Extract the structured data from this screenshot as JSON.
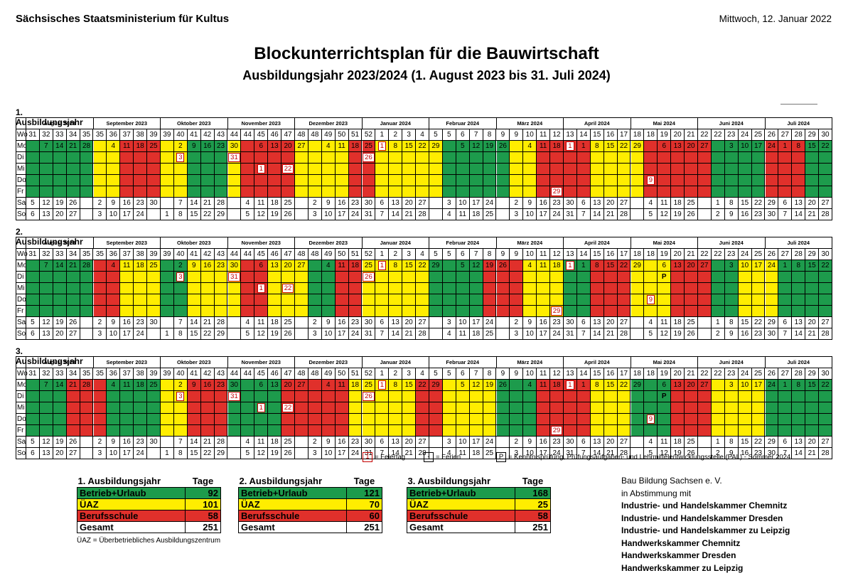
{
  "header": {
    "ministry": "Sächsisches Staatsministerium für Kultus",
    "date": "Mittwoch, 12. Januar 2022",
    "title": "Blockunterrichtsplan für die Bauwirtschaft",
    "subtitle": "Ausbildungsjahr 2023/2024 (1. August 2023 bis 31. Juli 2024)"
  },
  "day_labels": [
    "Wo",
    "Mo",
    "Di",
    "Mi",
    "Do",
    "Fr",
    "Sa",
    "So"
  ],
  "months": [
    {
      "label": "August 2023",
      "span": 5
    },
    {
      "label": "September 2023",
      "span": 5
    },
    {
      "label": "Oktober 2023",
      "span": 5
    },
    {
      "label": "November 2023",
      "span": 5
    },
    {
      "label": "Dezember 2023",
      "span": 5
    },
    {
      "label": "Januar 2024",
      "span": 5
    },
    {
      "label": "Februar 2024",
      "span": 5
    },
    {
      "label": "März 2024",
      "span": 5
    },
    {
      "label": "April 2024",
      "span": 5
    },
    {
      "label": "Mai 2024",
      "span": 5
    },
    {
      "label": "Juni 2024",
      "span": 5
    },
    {
      "label": "Juli 2024",
      "span": 5
    }
  ],
  "week_numbers": [
    "31",
    "32",
    "33",
    "34",
    "35",
    "35",
    "36",
    "37",
    "38",
    "39",
    "39",
    "40",
    "41",
    "42",
    "43",
    "44",
    "44",
    "45",
    "46",
    "47",
    "48",
    "48",
    "49",
    "50",
    "51",
    "52",
    "1",
    "2",
    "3",
    "4",
    "5",
    "5",
    "6",
    "7",
    "8",
    "9",
    "9",
    "10",
    "11",
    "12",
    "13",
    "14",
    "15",
    "16",
    "17",
    "18",
    "18",
    "19",
    "20",
    "21",
    "22",
    "22",
    "23",
    "24",
    "25",
    "26",
    "27",
    "28",
    "29",
    "30",
    "31"
  ],
  "monday_dates": [
    "",
    "7",
    "14",
    "21",
    "28",
    "",
    "4",
    "11",
    "18",
    "25",
    "",
    "2",
    "9",
    "16",
    "23",
    "30",
    "",
    "6",
    "13",
    "20",
    "27",
    "",
    "4",
    "11",
    "18",
    "25",
    "1",
    "8",
    "15",
    "22",
    "29",
    "",
    "5",
    "12",
    "19",
    "26",
    "",
    "4",
    "11",
    "18",
    "25",
    "1",
    "8",
    "15",
    "22",
    "29",
    "",
    "6",
    "13",
    "20",
    "27",
    "",
    "3",
    "10",
    "17",
    "24",
    "1",
    "8",
    "15",
    "22",
    "29"
  ],
  "saturday_dates": [
    "5",
    "12",
    "19",
    "26",
    "",
    "2",
    "9",
    "16",
    "23",
    "30",
    "",
    "7",
    "14",
    "21",
    "28",
    "",
    "4",
    "11",
    "18",
    "25",
    "",
    "2",
    "9",
    "16",
    "23",
    "30",
    "6",
    "13",
    "20",
    "27",
    "",
    "3",
    "10",
    "17",
    "24",
    "",
    "2",
    "9",
    "16",
    "23",
    "30",
    "6",
    "13",
    "20",
    "27",
    "",
    "4",
    "11",
    "18",
    "25",
    "",
    "1",
    "8",
    "15",
    "22",
    "29",
    "6",
    "13",
    "20",
    "27",
    ""
  ],
  "sunday_dates": [
    "6",
    "13",
    "20",
    "27",
    "",
    "3",
    "10",
    "17",
    "24",
    "",
    "1",
    "8",
    "15",
    "22",
    "29",
    "",
    "5",
    "12",
    "19",
    "26",
    "",
    "3",
    "10",
    "17",
    "24",
    "31",
    "7",
    "14",
    "21",
    "28",
    "",
    "4",
    "11",
    "18",
    "25",
    "",
    "3",
    "10",
    "17",
    "24",
    "31",
    "7",
    "14",
    "21",
    "28",
    "",
    "5",
    "12",
    "19",
    "26",
    "",
    "2",
    "9",
    "16",
    "23",
    "30",
    "7",
    "14",
    "21",
    "28",
    ""
  ],
  "years": [
    {
      "title": "1. Ausbildungsjahr",
      "week_colors": "GGGGGYYRRRYYGGGYRRRRYYYYRRYYYYYGGGGGYYRRRRYYYYRRRRRGGGGRRRGGG",
      "special": [
        {
          "col": 26,
          "row": 1,
          "text": "1",
          "type": "feiertag"
        },
        {
          "col": 11,
          "row": 2,
          "text": "3",
          "type": "feiertag"
        },
        {
          "col": 15,
          "row": 2,
          "text": "31",
          "type": "feiertag"
        },
        {
          "col": 17,
          "row": 3,
          "text": "1",
          "type": "feiertag"
        },
        {
          "col": 19,
          "row": 3,
          "text": "22",
          "type": "feiertag"
        },
        {
          "col": 25,
          "row": 2,
          "text": "26",
          "type": "feiertag"
        },
        {
          "col": 40,
          "row": 1,
          "text": "1",
          "type": "feiertag"
        },
        {
          "col": 39,
          "row": 5,
          "text": "29",
          "type": "feiertag"
        },
        {
          "col": 46,
          "row": 4,
          "text": "9",
          "type": "feiertag"
        }
      ]
    },
    {
      "title": "2. Ausbildungsjahr",
      "week_colors": "GGGGGRRYYYGGYYYYRRYYYGGRRYYYYYGGGGRRRYYYGGRRRYYYRRRGGYYYGGGG",
      "special": [
        {
          "col": 26,
          "row": 1,
          "text": "1",
          "type": "feiertag"
        },
        {
          "col": 11,
          "row": 2,
          "text": "3",
          "type": "feiertag"
        },
        {
          "col": 15,
          "row": 2,
          "text": "31",
          "type": "feiertag"
        },
        {
          "col": 17,
          "row": 3,
          "text": "1",
          "type": "feiertag"
        },
        {
          "col": 19,
          "row": 3,
          "text": "22",
          "type": "feiertag"
        },
        {
          "col": 25,
          "row": 2,
          "text": "26",
          "type": "feiertag"
        },
        {
          "col": 40,
          "row": 1,
          "text": "1",
          "type": "feiertag"
        },
        {
          "col": 39,
          "row": 5,
          "text": "29",
          "type": "feiertag"
        },
        {
          "col": 46,
          "row": 4,
          "text": "9",
          "type": "feiertag"
        },
        {
          "col": 47,
          "row": 2,
          "text": "P",
          "type": "pal"
        }
      ]
    },
    {
      "title": "3. Ausbildungsjahr",
      "week_colors": "GGGRRRGGGGYYRRRGGGGRRRRRYYYYYRRYYYYGGGRRRRYYYGGGRRRYYYYGGGGG",
      "special": [
        {
          "col": 26,
          "row": 1,
          "text": "1",
          "type": "feiertag"
        },
        {
          "col": 11,
          "row": 2,
          "text": "3",
          "type": "feiertag"
        },
        {
          "col": 15,
          "row": 2,
          "text": "31",
          "type": "feiertag"
        },
        {
          "col": 17,
          "row": 3,
          "text": "1",
          "type": "feiertag"
        },
        {
          "col": 19,
          "row": 3,
          "text": "22",
          "type": "feiertag"
        },
        {
          "col": 25,
          "row": 2,
          "text": "26",
          "type": "feiertag"
        },
        {
          "col": 40,
          "row": 1,
          "text": "1",
          "type": "feiertag"
        },
        {
          "col": 39,
          "row": 5,
          "text": "29",
          "type": "feiertag"
        },
        {
          "col": 46,
          "row": 4,
          "text": "9",
          "type": "feiertag"
        },
        {
          "col": 47,
          "row": 2,
          "text": "P",
          "type": "pal"
        }
      ]
    }
  ],
  "legend": {
    "feiertag_sym": "1",
    "feiertag": "= Feiertag",
    "ferien_sym": "-",
    "ferien": "= Ferien",
    "pal_sym": "P",
    "pal": "= Kenntnisprüfung, Prüfungsaufgaben- und Lehrmittelentwicklungsstelle (PAL) - Sommer 2024"
  },
  "summary": [
    {
      "title": "1. Ausbildungsjahr",
      "tage": "Tage",
      "rows": [
        {
          "label": "Betrieb+Urlaub",
          "value": "92",
          "color": "#1d9b4c"
        },
        {
          "label": "ÜAZ",
          "value": "101",
          "color": "#ffed00"
        },
        {
          "label": "Berufsschule",
          "value": "58",
          "color": "#e0302b"
        },
        {
          "label": "Gesamt",
          "value": "251",
          "color": "#ffffff"
        }
      ]
    },
    {
      "title": "2. Ausbildungsjahr",
      "tage": "Tage",
      "rows": [
        {
          "label": "Betrieb+Urlaub",
          "value": "121",
          "color": "#1d9b4c"
        },
        {
          "label": "ÜAZ",
          "value": "70",
          "color": "#ffed00"
        },
        {
          "label": "Berufsschule",
          "value": "60",
          "color": "#e0302b"
        },
        {
          "label": "Gesamt",
          "value": "251",
          "color": "#ffffff"
        }
      ]
    },
    {
      "title": "3. Ausbildungsjahr",
      "tage": "Tage",
      "rows": [
        {
          "label": "Betrieb+Urlaub",
          "value": "168",
          "color": "#1d9b4c"
        },
        {
          "label": "ÜAZ",
          "value": "25",
          "color": "#ffed00"
        },
        {
          "label": "Berufsschule",
          "value": "58",
          "color": "#e0302b"
        },
        {
          "label": "Gesamt",
          "value": "251",
          "color": "#ffffff"
        }
      ]
    }
  ],
  "footnote": "ÜAZ = Überbetriebliches Ausbildungszentrum",
  "organizations": {
    "lead": "Bau Bildung Sachsen e. V.",
    "with": "in Abstimmung mit",
    "list": [
      "Industrie- und Handelskammer Chemnitz",
      "Industrie- und Handelskammer Dresden",
      "Industrie- und Handelskammer zu Leipzig",
      "Handwerkskammer Chemnitz",
      "Handwerkskammer Dresden",
      "Handwerkskammer zu Leipzig"
    ]
  },
  "colors": {
    "betrieb": "#1d9b4c",
    "uaz": "#ffed00",
    "berufsschule": "#e0302b"
  }
}
